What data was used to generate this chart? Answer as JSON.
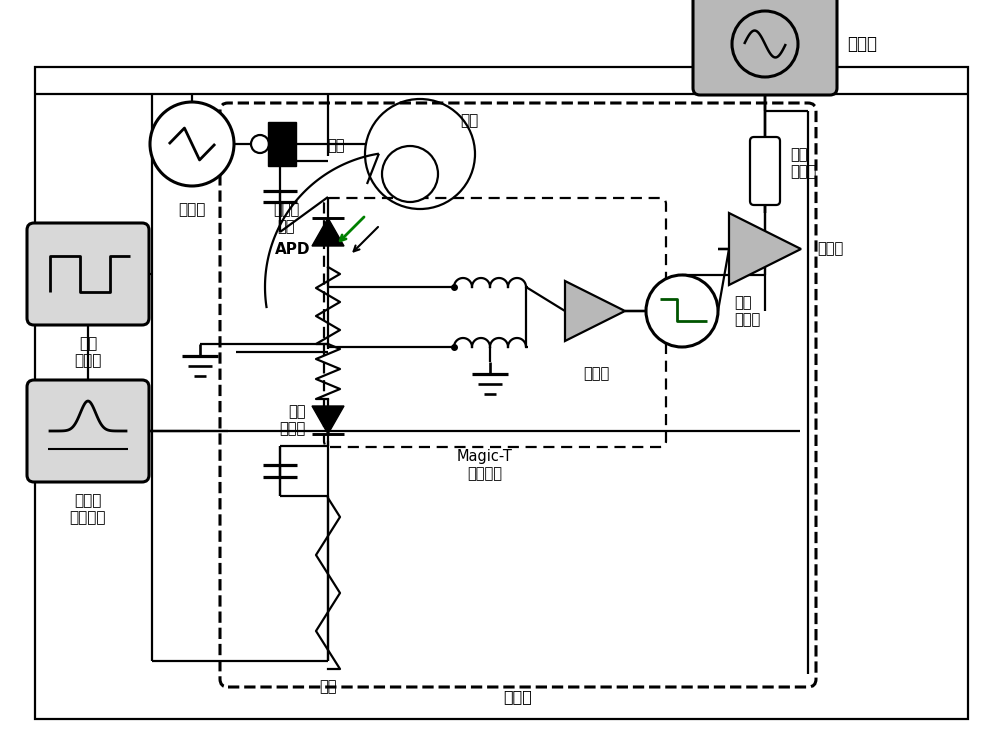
{
  "bg_color": "#ffffff",
  "labels": {
    "laser": "激光器",
    "attenuator": "可调衰\n减器",
    "fiber": "光纤",
    "oscilloscope": "示波器",
    "adc": "模数\n转换器",
    "amplifier_right": "放大器",
    "amplifier_mid": "放大器",
    "low_pass": "低通\n滤波器",
    "apd": "APD",
    "hv_top": "高压",
    "hv_bottom": "高压",
    "high_speed_diode": "高速\n二极管",
    "magic_t": "Magic-T\n差分网络",
    "cooling_box": "制冷盒",
    "signal_gen": "信号\n发生器",
    "gate_pulse": "门脉冲\n产生电路"
  }
}
